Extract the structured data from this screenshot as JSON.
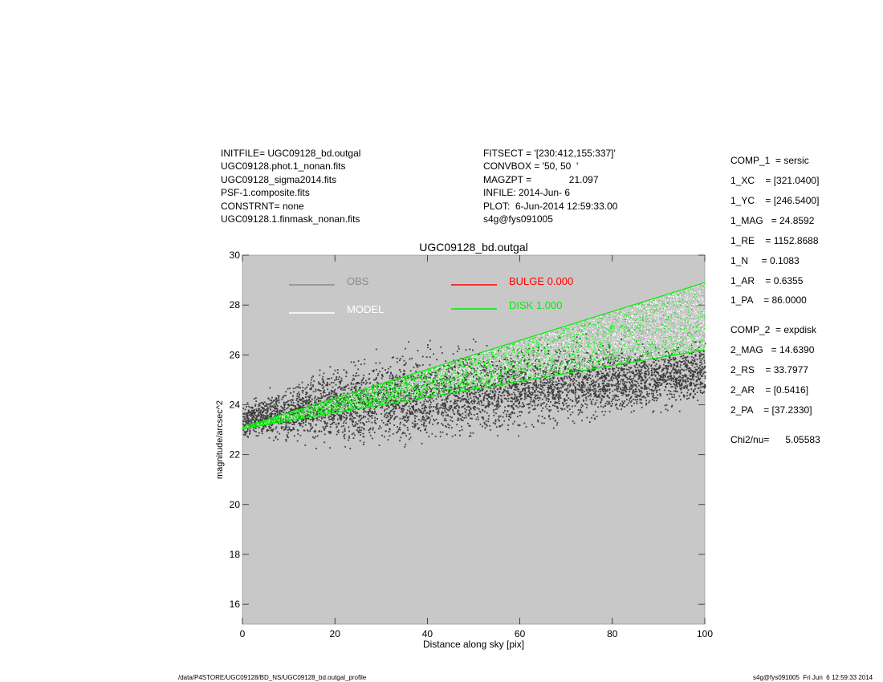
{
  "header_left": [
    "INITFILE= UGC09128_bd.outgal",
    "UGC09128.phot.1_nonan.fits",
    "UGC09128_sigma2014.fits",
    "PSF-1.composite.fits",
    "CONSTRNT= none",
    "UGC09128.1.finmask_nonan.fits"
  ],
  "header_mid": [
    "FITSECT = '[230:412,155:337]'",
    "CONVBOX = '50, 50  '",
    "MAGZPT =              21.097",
    "INFILE: 2014-Jun- 6",
    "PLOT:  6-Jun-2014 12:59:33.00",
    "s4g@fys091005"
  ],
  "params": [
    "COMP_1  = sersic",
    "1_XC    = [321.0400]",
    "1_YC    = [246.5400]",
    "1_MAG   = 24.8592",
    "1_RE    = 1152.8688",
    "1_N     = 0.1083",
    "1_AR    = 0.6355",
    "1_PA    = 86.0000",
    "COMP_2  = expdisk",
    "2_MAG   = 14.6390",
    "2_RS    = 33.7977",
    "2_AR    = [0.5416]",
    "2_PA    = [37.2330]",
    "Chi2/nu=      5.05583"
  ],
  "footer": {
    "left": "/data/P4STORE/UGC09128/BD_NS/UGC09128_bd.outgal_profile",
    "right": "s4g@fys091005  Fri Jun  6 12:59:33 2014"
  },
  "chart_data": {
    "type": "scatter",
    "title": "UGC09128_bd.outgal",
    "xlabel": "Distance along sky [pix]",
    "ylabel": "magnitude/arcsec^2",
    "xlim": [
      0,
      100
    ],
    "ylim": [
      30,
      15.2
    ],
    "y_inverted": true,
    "xticks": [
      "0",
      "20",
      "40",
      "60",
      "80",
      "100"
    ],
    "yticks": [
      "16",
      "18",
      "20",
      "22",
      "24",
      "26",
      "28",
      "30"
    ],
    "grid": false,
    "background_color": "#c8c8c8",
    "legend": [
      {
        "label": "OBS",
        "color": "#8c8c8c"
      },
      {
        "label": "MODEL",
        "color": "#ffffff"
      },
      {
        "label": "BULGE  0.000",
        "color": "#ff0000"
      },
      {
        "label": "DISK  1.000",
        "color": "#00ee00"
      }
    ],
    "series": [
      {
        "name": "OBS",
        "color": "#3c3c3c",
        "trend_x": [
          0,
          20,
          40,
          60,
          80,
          100
        ],
        "trend_y": [
          23.4,
          24.0,
          24.4,
          24.7,
          25.0,
          25.3
        ],
        "scatter_mag": [
          0.5,
          1.2,
          1.4,
          1.3,
          1.1,
          1.0
        ]
      },
      {
        "name": "DISK",
        "color": "#00ee00",
        "upper_edge_x": [
          0,
          100
        ],
        "upper_edge_y": [
          23.05,
          26.2
        ],
        "lower_edge_x": [
          0,
          100
        ],
        "lower_edge_y": [
          23.1,
          28.9
        ]
      },
      {
        "name": "MODEL",
        "color": "#ffffff",
        "upper_edge_x": [
          0,
          100
        ],
        "upper_edge_y": [
          23.05,
          26.2
        ],
        "lower_edge_x": [
          0,
          100
        ],
        "lower_edge_y": [
          23.1,
          28.9
        ]
      }
    ]
  }
}
